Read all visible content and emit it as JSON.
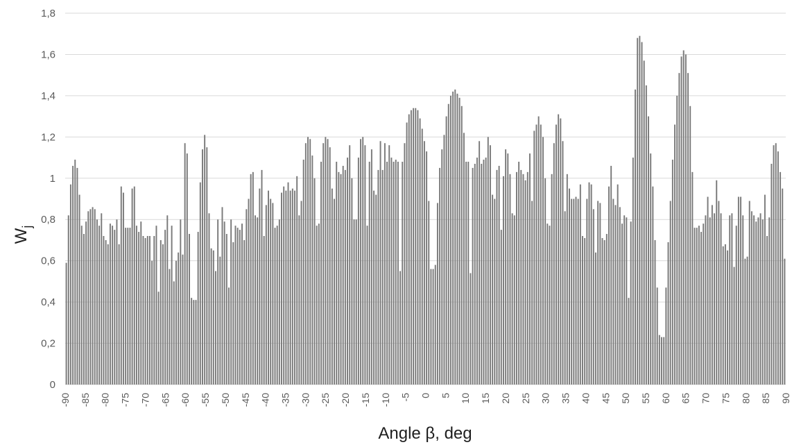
{
  "chart_data": {
    "type": "bar",
    "title": "",
    "xlabel": "Angle β, deg",
    "ylabel_main": "W",
    "ylabel_sub": "j",
    "ylim": [
      0,
      1.8
    ],
    "yticks": [
      0,
      0.2,
      0.4,
      0.6,
      0.8,
      1,
      1.2,
      1.4,
      1.6,
      1.8
    ],
    "ytick_labels": [
      "0",
      "0,2",
      "0,4",
      "0,6",
      "0,8",
      "1",
      "1,2",
      "1,4",
      "1,6",
      "1,8"
    ],
    "xticks": [
      -90,
      -85,
      -80,
      -75,
      -70,
      -65,
      -60,
      -55,
      -50,
      -45,
      -40,
      -35,
      -30,
      -25,
      -20,
      -15,
      -10,
      -5,
      0,
      5,
      10,
      15,
      20,
      25,
      30,
      35,
      40,
      45,
      50,
      55,
      60,
      65,
      70,
      75,
      80,
      85,
      90
    ],
    "xtick_labels": [
      "-90",
      "-85",
      "-80",
      "-75",
      "-70",
      "-65",
      "-60",
      "-55",
      "-50",
      "-45",
      "-40",
      "-35",
      "-30",
      "-25",
      "-20",
      "-15",
      "-10",
      "-5",
      "0",
      "5",
      "10",
      "15",
      "20",
      "25",
      "30",
      "35",
      "40",
      "45",
      "50",
      "55",
      "60",
      "65",
      "70",
      "75",
      "80",
      "85",
      "90"
    ],
    "bar_color": "#7b7b7b",
    "grid": true,
    "legend": "none",
    "x_step": 0.5,
    "x_start": -90,
    "values": [
      0.59,
      0.82,
      0.97,
      1.06,
      1.09,
      1.05,
      0.92,
      0.77,
      0.73,
      0.79,
      0.84,
      0.85,
      0.86,
      0.85,
      0.8,
      0.77,
      0.83,
      0.72,
      0.7,
      0.68,
      0.78,
      0.77,
      0.75,
      0.8,
      0.68,
      0.96,
      0.93,
      0.76,
      0.76,
      0.76,
      0.95,
      0.96,
      0.77,
      0.74,
      0.79,
      0.72,
      0.71,
      0.72,
      0.72,
      0.6,
      0.72,
      0.77,
      0.45,
      0.7,
      0.68,
      0.75,
      0.82,
      0.56,
      0.77,
      0.5,
      0.6,
      0.64,
      0.8,
      0.63,
      1.17,
      1.12,
      0.73,
      0.42,
      0.41,
      0.41,
      0.74,
      0.98,
      1.14,
      1.21,
      1.15,
      0.83,
      0.66,
      0.65,
      0.55,
      0.8,
      0.62,
      0.86,
      0.79,
      0.73,
      0.47,
      0.8,
      0.69,
      0.77,
      0.76,
      0.75,
      0.78,
      0.7,
      0.85,
      0.9,
      1.02,
      1.03,
      0.82,
      0.81,
      0.95,
      1.04,
      0.72,
      0.87,
      0.94,
      0.9,
      0.88,
      0.76,
      0.77,
      0.8,
      0.93,
      0.96,
      0.94,
      0.98,
      0.94,
      0.95,
      0.94,
      1.01,
      0.82,
      0.89,
      1.09,
      1.17,
      1.2,
      1.19,
      1.11,
      1.0,
      0.77,
      0.78,
      1.08,
      1.17,
      1.2,
      1.19,
      1.15,
      0.95,
      0.9,
      1.08,
      1.03,
      1.02,
      1.06,
      1.04,
      1.1,
      1.16,
      1.0,
      0.8,
      0.8,
      1.1,
      1.19,
      1.2,
      1.16,
      0.77,
      1.08,
      1.14,
      0.94,
      0.92,
      1.04,
      1.18,
      1.04,
      1.17,
      1.08,
      1.16,
      1.1,
      1.08,
      1.09,
      1.08,
      0.55,
      1.08,
      1.17,
      1.27,
      1.31,
      1.33,
      1.34,
      1.34,
      1.33,
      1.29,
      1.24,
      1.18,
      1.13,
      0.89,
      0.56,
      0.56,
      0.58,
      0.88,
      1.05,
      1.14,
      1.21,
      1.3,
      1.36,
      1.4,
      1.42,
      1.43,
      1.41,
      1.39,
      1.35,
      1.22,
      1.08,
      1.08,
      0.54,
      1.05,
      1.07,
      1.1,
      1.18,
      1.07,
      1.09,
      1.1,
      1.2,
      1.16,
      0.92,
      0.9,
      1.04,
      1.06,
      0.75,
      1.01,
      1.14,
      1.12,
      1.02,
      0.83,
      0.82,
      1.03,
      1.08,
      1.04,
      1.02,
      0.99,
      1.03,
      1.12,
      0.89,
      1.23,
      1.26,
      1.3,
      1.26,
      1.2,
      1.0,
      0.78,
      0.77,
      1.02,
      1.17,
      1.26,
      1.31,
      1.29,
      1.18,
      0.84,
      1.02,
      0.95,
      0.9,
      0.9,
      0.91,
      0.9,
      0.97,
      0.72,
      0.71,
      0.9,
      0.98,
      0.97,
      0.85,
      0.64,
      0.89,
      0.88,
      0.71,
      0.7,
      0.73,
      0.96,
      1.06,
      0.9,
      0.87,
      0.97,
      0.86,
      0.78,
      0.82,
      0.81,
      0.42,
      0.79,
      1.1,
      1.43,
      1.68,
      1.69,
      1.66,
      1.57,
      1.45,
      1.3,
      1.12,
      0.96,
      0.7,
      0.47,
      0.24,
      0.23,
      0.23,
      0.47,
      0.69,
      0.89,
      1.09,
      1.26,
      1.4,
      1.51,
      1.59,
      1.62,
      1.6,
      1.51,
      1.35,
      1.03,
      0.76,
      0.76,
      0.77,
      0.74,
      0.78,
      0.82,
      0.91,
      0.81,
      0.87,
      0.83,
      0.99,
      0.89,
      0.83,
      0.67,
      0.68,
      0.65,
      0.82,
      0.83,
      0.57,
      0.77,
      0.91,
      0.91,
      0.82,
      0.61,
      0.62,
      0.89,
      0.84,
      0.82,
      0.79,
      0.81,
      0.83,
      0.8,
      0.92,
      0.72,
      0.81,
      1.07,
      1.16,
      1.17,
      1.13,
      1.03,
      0.95,
      0.61
    ]
  }
}
